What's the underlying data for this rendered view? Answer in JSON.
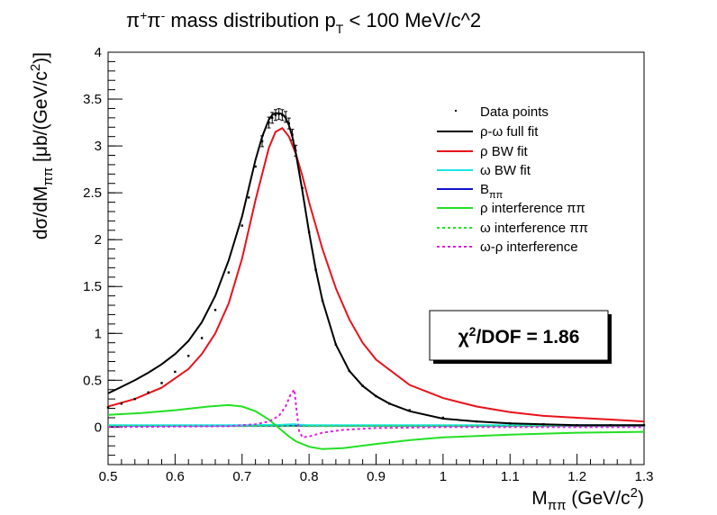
{
  "chart_data": {
    "type": "line",
    "title": {
      "prefix": "π",
      "sup1": "+",
      "mid": "π",
      "sup2": "-",
      "main": " mass distribution p",
      "sub": "T",
      "tail": " < 100 MeV/c^2"
    },
    "xlabel": {
      "main": "M",
      "sub": "ππ",
      "unit": " (GeV/c",
      "sup": "2",
      "close": ")"
    },
    "ylabel": {
      "main": "dσ/dM",
      "sub": "ππ",
      "unit": " [μb/(GeV/c",
      "sup": "2",
      "close": ")]"
    },
    "xlim": [
      0.5,
      1.3
    ],
    "ylim": [
      -0.4,
      4.0
    ],
    "xticks": [
      0.5,
      0.6,
      0.7,
      0.8,
      0.9,
      1.0,
      1.1,
      1.2,
      1.3
    ],
    "xtick_labels": [
      "0.5",
      "0.6",
      "0.7",
      "0.8",
      "0.9",
      "1",
      "1.1",
      "1.2",
      "1.3"
    ],
    "yticks": [
      0,
      0.5,
      1.0,
      1.5,
      2.0,
      2.5,
      3.0,
      3.5,
      4.0
    ],
    "ytick_labels": [
      "0",
      "0.5",
      "1",
      "1.5",
      "2",
      "2.5",
      "3",
      "3.5",
      "4"
    ],
    "legend_position": "top-right",
    "legend": [
      {
        "key": "data",
        "label": "Data points",
        "style": "marker",
        "color": "#000000"
      },
      {
        "key": "full",
        "label": "ρ-ω full fit",
        "style": "solid",
        "color": "#000000"
      },
      {
        "key": "rho",
        "label": "ρ BW fit",
        "style": "solid",
        "color": "#e8121a"
      },
      {
        "key": "omega",
        "label": "ω BW fit",
        "style": "solid",
        "color": "#19e6e6"
      },
      {
        "key": "bkg",
        "label": "B",
        "sub": "ππ",
        "style": "solid",
        "color": "#1010d0"
      },
      {
        "key": "rhoint",
        "label": "ρ interference  ππ",
        "style": "solid",
        "color": "#22e022"
      },
      {
        "key": "omegaint",
        "label": "ω interference  ππ",
        "style": "dashed",
        "color": "#22e022"
      },
      {
        "key": "orint",
        "label": "ω-ρ interference",
        "style": "dashed",
        "color": "#e020e0"
      }
    ],
    "annotation": {
      "main": "χ",
      "sup": "2",
      "rest": "/DOF = 1.86"
    },
    "series": [
      {
        "key": "data",
        "type": "scatter",
        "x": [
          0.5,
          0.52,
          0.54,
          0.56,
          0.58,
          0.6,
          0.62,
          0.64,
          0.66,
          0.68,
          0.7,
          0.71,
          0.72,
          0.73,
          0.74,
          0.745,
          0.75,
          0.755,
          0.76,
          0.765,
          0.77,
          0.775,
          0.78,
          0.79,
          0.8,
          0.81,
          0.82,
          0.84,
          0.86,
          0.88,
          0.9,
          0.92,
          0.95,
          1.0,
          1.05,
          1.1,
          1.15,
          1.2,
          1.25,
          1.3
        ],
        "y": [
          0.21,
          0.25,
          0.3,
          0.37,
          0.47,
          0.59,
          0.76,
          0.95,
          1.25,
          1.65,
          2.15,
          2.45,
          2.78,
          3.05,
          3.25,
          3.3,
          3.33,
          3.34,
          3.33,
          3.31,
          3.24,
          3.12,
          2.95,
          2.55,
          2.08,
          1.68,
          1.35,
          0.88,
          0.6,
          0.44,
          0.33,
          0.25,
          0.18,
          0.1,
          0.06,
          0.04,
          0.03,
          0.02,
          0.02,
          0.02
        ]
      },
      {
        "key": "full",
        "x": [
          0.5,
          0.52,
          0.54,
          0.56,
          0.58,
          0.6,
          0.62,
          0.64,
          0.66,
          0.68,
          0.7,
          0.71,
          0.72,
          0.73,
          0.74,
          0.745,
          0.75,
          0.755,
          0.76,
          0.765,
          0.77,
          0.775,
          0.78,
          0.79,
          0.8,
          0.81,
          0.82,
          0.84,
          0.86,
          0.88,
          0.9,
          0.92,
          0.95,
          1.0,
          1.05,
          1.1,
          1.15,
          1.2,
          1.25,
          1.3
        ],
        "y": [
          0.36,
          0.43,
          0.5,
          0.58,
          0.67,
          0.78,
          0.92,
          1.12,
          1.4,
          1.78,
          2.25,
          2.55,
          2.85,
          3.1,
          3.28,
          3.33,
          3.35,
          3.35,
          3.34,
          3.3,
          3.22,
          3.1,
          2.93,
          2.52,
          2.08,
          1.68,
          1.35,
          0.88,
          0.6,
          0.44,
          0.33,
          0.25,
          0.17,
          0.09,
          0.06,
          0.04,
          0.03,
          0.02,
          0.02,
          0.02
        ]
      },
      {
        "key": "rho",
        "x": [
          0.5,
          0.54,
          0.58,
          0.62,
          0.64,
          0.66,
          0.68,
          0.7,
          0.72,
          0.74,
          0.75,
          0.76,
          0.77,
          0.78,
          0.79,
          0.8,
          0.82,
          0.84,
          0.86,
          0.88,
          0.9,
          0.95,
          1.0,
          1.05,
          1.1,
          1.15,
          1.2,
          1.25,
          1.3
        ],
        "y": [
          0.22,
          0.3,
          0.42,
          0.62,
          0.78,
          1.0,
          1.32,
          1.8,
          2.42,
          2.98,
          3.15,
          3.19,
          3.1,
          2.92,
          2.68,
          2.4,
          1.9,
          1.48,
          1.15,
          0.9,
          0.72,
          0.45,
          0.31,
          0.22,
          0.16,
          0.12,
          0.1,
          0.08,
          0.06
        ]
      },
      {
        "key": "omega",
        "x": [
          0.5,
          0.7,
          0.76,
          0.775,
          0.78,
          0.785,
          0.8,
          0.9,
          1.1,
          1.3
        ],
        "y": [
          0.02,
          0.02,
          0.025,
          0.03,
          0.03,
          0.025,
          0.02,
          0.02,
          0.02,
          0.02
        ]
      },
      {
        "key": "bkg",
        "x": [
          0.5,
          0.7,
          0.9,
          1.1,
          1.3
        ],
        "y": [
          0.015,
          0.015,
          0.015,
          0.015,
          0.015
        ]
      },
      {
        "key": "rhoint",
        "x": [
          0.5,
          0.55,
          0.6,
          0.65,
          0.68,
          0.7,
          0.72,
          0.74,
          0.75,
          0.76,
          0.77,
          0.78,
          0.8,
          0.82,
          0.85,
          0.9,
          0.95,
          1.0,
          1.1,
          1.2,
          1.3
        ],
        "y": [
          0.13,
          0.15,
          0.18,
          0.22,
          0.235,
          0.22,
          0.17,
          0.08,
          0.02,
          -0.04,
          -0.1,
          -0.15,
          -0.21,
          -0.235,
          -0.225,
          -0.18,
          -0.14,
          -0.11,
          -0.08,
          -0.06,
          -0.05
        ]
      },
      {
        "key": "omegaint",
        "x": [
          0.5,
          0.7,
          0.76,
          0.78,
          0.8,
          1.3
        ],
        "y": [
          0.01,
          0.01,
          0.01,
          0.01,
          0.01,
          0.01
        ]
      },
      {
        "key": "orint",
        "x": [
          0.5,
          0.68,
          0.72,
          0.74,
          0.755,
          0.765,
          0.772,
          0.778,
          0.781,
          0.785,
          0.79,
          0.8,
          0.82,
          0.85,
          0.9,
          1.0,
          1.3
        ],
        "y": [
          0.0,
          0.01,
          0.03,
          0.06,
          0.12,
          0.22,
          0.34,
          0.4,
          0.2,
          -0.04,
          -0.11,
          -0.1,
          -0.06,
          -0.03,
          -0.01,
          0.0,
          0.0
        ]
      }
    ]
  }
}
